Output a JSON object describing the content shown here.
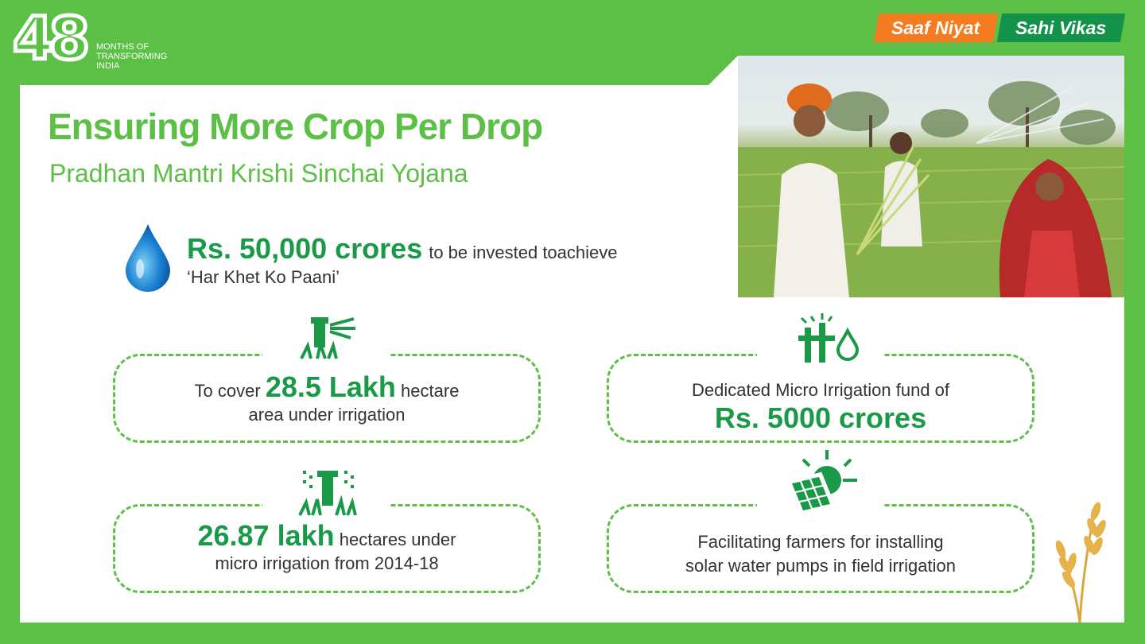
{
  "logo": {
    "number": "48",
    "text_lines": [
      "MONTHS OF",
      "TRANSFORMING",
      "INDIA"
    ]
  },
  "tags": {
    "saaf": "Saaf Niyat",
    "sahi": "Sahi Vikas"
  },
  "header": {
    "title": "Ensuring More Crop Per Drop",
    "subtitle": "Pradhan Mantri Krishi Sinchai Yojana"
  },
  "investment": {
    "amount": "Rs. 50,000 crores",
    "rest": "to be invested toachieve",
    "quote": "‘Har Khet Ko Paani’"
  },
  "cards": {
    "cover": {
      "prefix": "To cover",
      "value": "28.5 Lakh",
      "suffix": "hectare",
      "line2": "area under irrigation"
    },
    "fund": {
      "line1": "Dedicated Micro Irrigation fund of",
      "value": "Rs. 5000 crores"
    },
    "micro": {
      "value": "26.87 lakh",
      "suffix": "hectares under",
      "line2": "micro irrigation from 2014-18"
    },
    "solar": {
      "line1": "Facilitating farmers for installing",
      "line2": "solar water pumps in field irrigation"
    }
  },
  "colors": {
    "background": "#5cbf46",
    "accent_green": "#1a9a49",
    "orange": "#f47b20"
  },
  "icons": [
    "water-drop-icon",
    "sprinkler-icon",
    "water-pump-icon",
    "drip-irrigation-icon",
    "solar-panel-icon",
    "wheat-icon"
  ]
}
